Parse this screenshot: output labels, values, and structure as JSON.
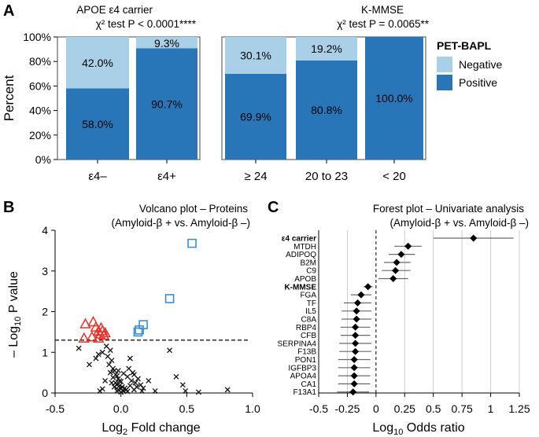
{
  "colors": {
    "negative": "#a9d0e6",
    "positive": "#2876b8",
    "triangle": "#e8322b",
    "square": "#3a8fd0",
    "cross": "#111111",
    "forest_line": "#6a6a6a",
    "grid": "#cccccc"
  },
  "panelA": {
    "letter": "A",
    "ylabel": "Percent",
    "yticks": [
      "0%",
      "20%",
      "40%",
      "60%",
      "80%",
      "100%"
    ],
    "legend": {
      "title": "PET-BAPL",
      "items": [
        "Negative",
        "Positive"
      ]
    }
  },
  "panelB": {
    "letter": "B",
    "title_line1": "Volcano plot – Proteins",
    "title_line2": "(Amyloid-β + vs. Amyloid-β –)",
    "ylabel": "– Log",
    "ylabel_sub": "10",
    "ylabel_end": " P value",
    "xlabel": "Log",
    "xlabel_sub": "2",
    "xlabel_end": " Fold change",
    "xticks": [
      "-0.5",
      "0.0",
      "0.5",
      "1.0"
    ],
    "yticks": [
      "0",
      "1",
      "2",
      "3",
      "4"
    ]
  },
  "panelC": {
    "letter": "C",
    "title_line1": "Forest plot – Univariate analysis",
    "title_line2": "(Amyloid-β + vs. Amyloid-β –)",
    "xlabel": "Log",
    "xlabel_sub": "10",
    "xlabel_end": " Odds ratio",
    "xticks": [
      "-0.5",
      "-0.25",
      "0",
      "0.25",
      "0.5",
      "0.75",
      "1",
      "1.25"
    ]
  },
  "chart_data": [
    {
      "type": "bar",
      "stacked": true,
      "title_line1": "APOE ε4 carrier",
      "title_line2": "χ² test P < 0.0001****",
      "categories": [
        "ε4–",
        "ε4+"
      ],
      "series": [
        {
          "name": "Positive",
          "values": [
            58.0,
            90.7
          ],
          "labels": [
            "58.0%",
            "90.7%"
          ]
        },
        {
          "name": "Negative",
          "values": [
            42.0,
            9.3
          ],
          "labels": [
            "42.0%",
            "9.3%"
          ]
        }
      ],
      "ylim": [
        0,
        100
      ]
    },
    {
      "type": "bar",
      "stacked": true,
      "title_line1": "K-MMSE",
      "title_line2": "χ² test P = 0.0065**",
      "categories": [
        "≥ 24",
        "20 to 23",
        "< 20"
      ],
      "series": [
        {
          "name": "Positive",
          "values": [
            69.9,
            80.8,
            100.0
          ],
          "labels": [
            "69.9%",
            "80.8%",
            "100.0%"
          ]
        },
        {
          "name": "Negative",
          "values": [
            30.1,
            19.2,
            0.0
          ],
          "labels": [
            "30.1%",
            "19.2%",
            ""
          ]
        }
      ],
      "ylim": [
        0,
        100
      ]
    },
    {
      "type": "scatter",
      "title": "Volcano plot – Proteins",
      "xlim": [
        -0.5,
        1.0
      ],
      "ylim": [
        0,
        4
      ],
      "threshold": 1.3,
      "series": [
        {
          "name": "down-significant",
          "marker": "triangle",
          "points": [
            [
              -0.27,
              1.7
            ],
            [
              -0.21,
              1.75
            ],
            [
              -0.17,
              1.52
            ],
            [
              -0.15,
              1.6
            ],
            [
              -0.19,
              1.62
            ],
            [
              -0.16,
              1.45
            ],
            [
              -0.13,
              1.42
            ],
            [
              -0.17,
              1.35
            ],
            [
              -0.12,
              1.48
            ],
            [
              -0.14,
              1.53
            ],
            [
              -0.28,
              1.35
            ],
            [
              -0.22,
              1.38
            ]
          ]
        },
        {
          "name": "up-significant",
          "marker": "square",
          "points": [
            [
              0.54,
              3.68
            ],
            [
              0.37,
              2.32
            ],
            [
              0.17,
              1.68
            ],
            [
              0.13,
              1.5
            ],
            [
              0.14,
              1.55
            ]
          ]
        },
        {
          "name": "not-significant",
          "marker": "cross",
          "points": [
            [
              -0.32,
              1.1
            ],
            [
              -0.24,
              0.7
            ],
            [
              -0.19,
              0.85
            ],
            [
              -0.17,
              0.95
            ],
            [
              -0.14,
              1.0
            ],
            [
              -0.1,
              0.9
            ],
            [
              -0.11,
              1.15
            ],
            [
              -0.08,
              1.05
            ],
            [
              -0.07,
              0.8
            ],
            [
              -0.09,
              0.7
            ],
            [
              -0.06,
              0.6
            ],
            [
              -0.08,
              0.5
            ],
            [
              -0.05,
              0.55
            ],
            [
              -0.04,
              0.45
            ],
            [
              -0.03,
              0.42
            ],
            [
              -0.06,
              0.38
            ],
            [
              -0.02,
              0.35
            ],
            [
              -0.01,
              0.3
            ],
            [
              0.0,
              0.28
            ],
            [
              -0.04,
              0.25
            ],
            [
              -0.03,
              0.2
            ],
            [
              -0.01,
              0.18
            ],
            [
              0.01,
              0.15
            ],
            [
              0.0,
              0.1
            ],
            [
              -0.02,
              0.08
            ],
            [
              0.02,
              0.05
            ],
            [
              0.03,
              0.12
            ],
            [
              0.04,
              0.08
            ],
            [
              0.05,
              0.04
            ],
            [
              -0.05,
              0.15
            ],
            [
              0.0,
              0.02
            ],
            [
              -0.03,
              0.05
            ],
            [
              -0.07,
              0.25
            ],
            [
              0.06,
              0.6
            ],
            [
              0.07,
              0.85
            ],
            [
              0.09,
              0.5
            ],
            [
              0.05,
              0.4
            ],
            [
              0.08,
              0.3
            ],
            [
              0.11,
              0.25
            ],
            [
              0.12,
              0.15
            ],
            [
              0.1,
              0.45
            ],
            [
              0.13,
              0.35
            ],
            [
              0.15,
              0.2
            ],
            [
              0.17,
              0.12
            ],
            [
              0.16,
              0.05
            ],
            [
              0.21,
              0.3
            ],
            [
              0.26,
              0.05
            ],
            [
              0.37,
              1.05
            ],
            [
              0.42,
              0.4
            ],
            [
              0.47,
              0.2
            ],
            [
              0.49,
              0.05
            ],
            [
              0.59,
              0.02
            ],
            [
              0.81,
              0.08
            ],
            [
              -0.14,
              0.1
            ],
            [
              -0.16,
              0.05
            ],
            [
              -0.12,
              0.3
            ],
            [
              0.02,
              0.48
            ],
            [
              -0.02,
              0.55
            ],
            [
              0.07,
              0.18
            ],
            [
              0.1,
              0.08
            ]
          ]
        }
      ]
    },
    {
      "type": "forest",
      "title": "Forest plot – Univariate analysis",
      "xlim": [
        -0.5,
        1.25
      ],
      "rows": [
        {
          "label": "ε4 carrier",
          "bold": true,
          "est": 0.85,
          "lo": 0.5,
          "hi": 1.2
        },
        {
          "label": "MTDH",
          "bold": false,
          "est": 0.28,
          "lo": 0.16,
          "hi": 0.4
        },
        {
          "label": "ADIPOQ",
          "bold": false,
          "est": 0.22,
          "lo": 0.11,
          "hi": 0.34
        },
        {
          "label": "B2M",
          "bold": false,
          "est": 0.18,
          "lo": 0.07,
          "hi": 0.3
        },
        {
          "label": "C9",
          "bold": false,
          "est": 0.17,
          "lo": 0.05,
          "hi": 0.3
        },
        {
          "label": "APOB",
          "bold": false,
          "est": 0.15,
          "lo": 0.02,
          "hi": 0.28
        },
        {
          "label": "K-MMSE",
          "bold": true,
          "est": -0.07,
          "lo": -0.11,
          "hi": -0.03
        },
        {
          "label": "FGA",
          "bold": false,
          "est": -0.13,
          "lo": -0.22,
          "hi": -0.04
        },
        {
          "label": "TF",
          "bold": false,
          "est": -0.16,
          "lo": -0.28,
          "hi": -0.04
        },
        {
          "label": "IL5",
          "bold": false,
          "est": -0.17,
          "lo": -0.3,
          "hi": -0.04
        },
        {
          "label": "C8A",
          "bold": false,
          "est": -0.17,
          "lo": -0.3,
          "hi": -0.04
        },
        {
          "label": "RBP4",
          "bold": false,
          "est": -0.18,
          "lo": -0.31,
          "hi": -0.05
        },
        {
          "label": "CFB",
          "bold": false,
          "est": -0.18,
          "lo": -0.31,
          "hi": -0.05
        },
        {
          "label": "SERPINA4",
          "bold": false,
          "est": -0.18,
          "lo": -0.32,
          "hi": -0.04
        },
        {
          "label": "F13B",
          "bold": false,
          "est": -0.18,
          "lo": -0.32,
          "hi": -0.04
        },
        {
          "label": "PON1",
          "bold": false,
          "est": -0.19,
          "lo": -0.33,
          "hi": -0.05
        },
        {
          "label": "IGFBP3",
          "bold": false,
          "est": -0.19,
          "lo": -0.33,
          "hi": -0.05
        },
        {
          "label": "APOA4",
          "bold": false,
          "est": -0.19,
          "lo": -0.33,
          "hi": -0.05
        },
        {
          "label": "CA1",
          "bold": false,
          "est": -0.19,
          "lo": -0.33,
          "hi": -0.05
        },
        {
          "label": "F13A1",
          "bold": false,
          "est": -0.2,
          "lo": -0.34,
          "hi": -0.06
        }
      ]
    }
  ]
}
